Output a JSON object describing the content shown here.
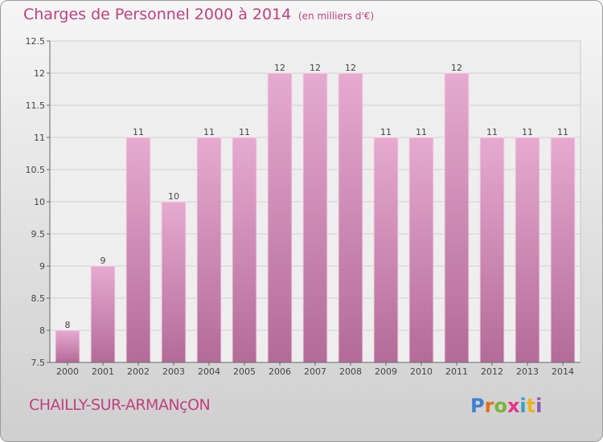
{
  "header": {
    "title": "Charges de Personnel 2000 à 2014",
    "subtitle": "(en milliers d'€)"
  },
  "footer": {
    "commune": "CHAILLY-SUR-ARMANçON",
    "logo_text": "Proxiti"
  },
  "colors": {
    "title": "#c0407f",
    "bar_top": "#e6aad0",
    "bar_bottom": "#b36b98",
    "grid": "#d0d0d0"
  },
  "chart_data": {
    "type": "bar",
    "categories": [
      "2000",
      "2001",
      "2002",
      "2003",
      "2004",
      "2005",
      "2006",
      "2007",
      "2008",
      "2009",
      "2010",
      "2011",
      "2012",
      "2013",
      "2014"
    ],
    "values": [
      8,
      9,
      11,
      10,
      11,
      11,
      12,
      12,
      12,
      11,
      11,
      12,
      11,
      11,
      11
    ],
    "data_labels": [
      "8",
      "9",
      "11",
      "10",
      "11",
      "11",
      "12",
      "12",
      "12",
      "11",
      "11",
      "12",
      "11",
      "11",
      "11"
    ],
    "title": "Charges de Personnel 2000 à 2014",
    "ylim": [
      7.5,
      12.5
    ],
    "yticks": [
      7.5,
      8,
      8.5,
      9,
      9.5,
      10,
      10.5,
      11,
      11.5,
      12,
      12.5
    ],
    "ytick_labels": [
      "7.5",
      "8",
      "8.5",
      "9",
      "9.5",
      "10",
      "10.5",
      "11",
      "11.5",
      "12",
      "12.5"
    ],
    "grid": true
  }
}
